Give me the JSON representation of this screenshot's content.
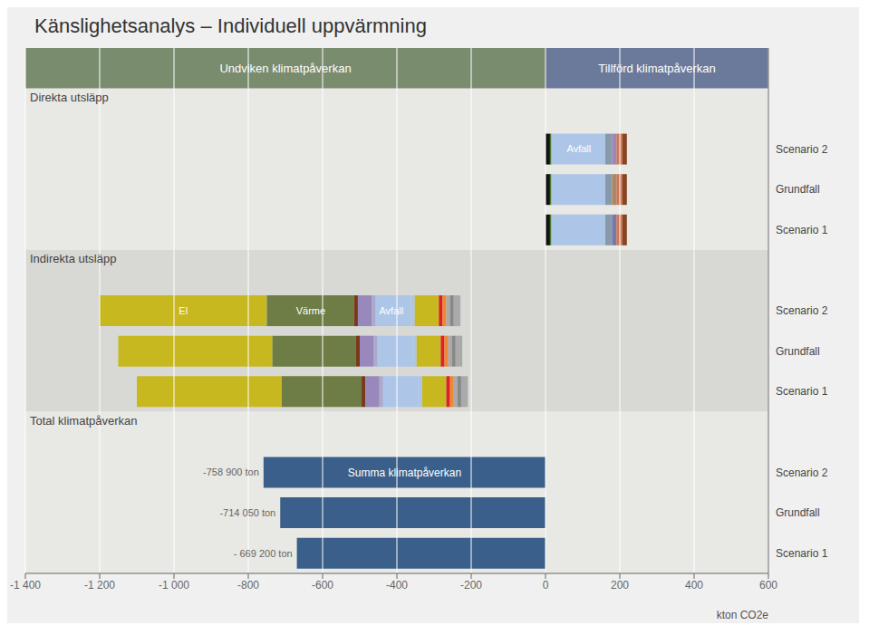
{
  "chart_data": {
    "type": "bar",
    "orientation": "horizontal",
    "stacked": true,
    "grid": true,
    "title": "Känslighetsanalys – Individuell uppvärmning",
    "xlabel": "kton CO2e",
    "xlim": [
      -1400,
      600
    ],
    "xticks": [
      {
        "value": -1400,
        "label": "-1 400"
      },
      {
        "value": -1200,
        "label": "-1 200"
      },
      {
        "value": -1000,
        "label": "-1 000"
      },
      -800,
      -600,
      -400,
      -200,
      0,
      200,
      400,
      600
    ],
    "background": "#f0f0f0",
    "headers": [
      {
        "text": "Undviken klimatpåverkan",
        "color": "#7a8c6e",
        "x": [
          -1400,
          0
        ]
      },
      {
        "text": "Tillförd klimatpåverkan",
        "color": "#6b7a9a",
        "x": [
          0,
          600
        ]
      }
    ],
    "groups": [
      {
        "name": "Direkta utsläpp",
        "color": "#e8e8e4",
        "rows": [
          {
            "category": "Scenario 2",
            "start": 0,
            "segments": [
              {
                "value": 12,
                "color": "#111111"
              },
              {
                "value": 4,
                "color": "#4a7a2c"
              },
              {
                "value": 145,
                "color": "#adc6e8"
              },
              {
                "value": 18,
                "color": "#8899aa"
              },
              {
                "value": 12,
                "color": "#9988bb"
              },
              {
                "value": 16,
                "color": "#cc7755"
              },
              {
                "value": 12,
                "color": "#884422"
              }
            ],
            "labels": [
              {
                "text": "Avfall",
                "x": 90,
                "color": "white"
              }
            ]
          },
          {
            "category": "Grundfall",
            "start": 0,
            "segments": [
              {
                "value": 12,
                "color": "#111111"
              },
              {
                "value": 4,
                "color": "#4a7a2c"
              },
              {
                "value": 145,
                "color": "#adc6e8"
              },
              {
                "value": 18,
                "color": "#8899aa"
              },
              {
                "value": 12,
                "color": "#aa8866"
              },
              {
                "value": 16,
                "color": "#cc7755"
              },
              {
                "value": 12,
                "color": "#884422"
              }
            ]
          },
          {
            "category": "Scenario 1",
            "start": 0,
            "segments": [
              {
                "value": 12,
                "color": "#111111"
              },
              {
                "value": 4,
                "color": "#4a7a2c"
              },
              {
                "value": 145,
                "color": "#adc6e8"
              },
              {
                "value": 18,
                "color": "#8899aa"
              },
              {
                "value": 12,
                "color": "#7777aa"
              },
              {
                "value": 16,
                "color": "#cc7755"
              },
              {
                "value": 12,
                "color": "#884422"
              }
            ]
          }
        ]
      },
      {
        "name": "Indirekta utsläpp",
        "color": "#d8d8d4",
        "rows": [
          {
            "category": "Scenario 2",
            "start": -1200,
            "segments": [
              {
                "value": 450,
                "color": "#c8b820"
              },
              {
                "value": 235,
                "color": "#6e7d45"
              },
              {
                "value": 10,
                "color": "#7a3a1a"
              },
              {
                "value": 38,
                "color": "#9988bb"
              },
              {
                "value": 10,
                "color": "#aaaacc"
              },
              {
                "value": 95,
                "color": "#adc6e8"
              },
              {
                "value": 10,
                "color": "#adc6e8"
              },
              {
                "value": 65,
                "color": "#c8b820"
              },
              {
                "value": 10,
                "color": "#dd2222"
              },
              {
                "value": 10,
                "color": "#ee8833"
              },
              {
                "value": 10,
                "color": "#aaaaaa"
              },
              {
                "value": 10,
                "color": "#888888"
              },
              {
                "value": 18,
                "color": "#aaaaaa"
              }
            ],
            "labels": [
              {
                "text": "El",
                "x": -975,
                "color": "white"
              },
              {
                "text": "Värme",
                "x": -632,
                "color": "white"
              },
              {
                "text": "Avfall",
                "x": -415,
                "color": "white"
              }
            ]
          },
          {
            "category": "Grundfall",
            "start": -1150,
            "segments": [
              {
                "value": 415,
                "color": "#c8b820"
              },
              {
                "value": 225,
                "color": "#6e7d45"
              },
              {
                "value": 10,
                "color": "#7a3a1a"
              },
              {
                "value": 38,
                "color": "#9988bb"
              },
              {
                "value": 10,
                "color": "#aaaacc"
              },
              {
                "value": 95,
                "color": "#adc6e8"
              },
              {
                "value": 10,
                "color": "#adc6e8"
              },
              {
                "value": 65,
                "color": "#c8b820"
              },
              {
                "value": 10,
                "color": "#dd2222"
              },
              {
                "value": 10,
                "color": "#ee8833"
              },
              {
                "value": 10,
                "color": "#aaaaaa"
              },
              {
                "value": 10,
                "color": "#888888"
              },
              {
                "value": 18,
                "color": "#aaaaaa"
              }
            ]
          },
          {
            "category": "Scenario 1",
            "start": -1100,
            "segments": [
              {
                "value": 390,
                "color": "#c8b820"
              },
              {
                "value": 215,
                "color": "#6e7d45"
              },
              {
                "value": 10,
                "color": "#7a3a1a"
              },
              {
                "value": 38,
                "color": "#9988bb"
              },
              {
                "value": 10,
                "color": "#aaaacc"
              },
              {
                "value": 95,
                "color": "#adc6e8"
              },
              {
                "value": 10,
                "color": "#adc6e8"
              },
              {
                "value": 65,
                "color": "#c8b820"
              },
              {
                "value": 10,
                "color": "#dd2222"
              },
              {
                "value": 10,
                "color": "#ee8833"
              },
              {
                "value": 10,
                "color": "#aaaaaa"
              },
              {
                "value": 10,
                "color": "#888888"
              },
              {
                "value": 18,
                "color": "#aaaaaa"
              }
            ]
          }
        ]
      },
      {
        "name": "Total klimatpåverkan",
        "color": "#e8e8e4",
        "rows": [
          {
            "category": "Scenario 2",
            "start": -758.9,
            "segments": [
              {
                "value": 758.9,
                "color": "#3a5f8a",
                "label": "Summa klimatpåverkan"
              }
            ],
            "annotation": "-758 900 ton"
          },
          {
            "category": "Grundfall",
            "start": -714.05,
            "segments": [
              {
                "value": 714.05,
                "color": "#3a5f8a"
              }
            ],
            "annotation": "-714 050 ton"
          },
          {
            "category": "Scenario 1",
            "start": -669.2,
            "segments": [
              {
                "value": 669.2,
                "color": "#3a5f8a"
              }
            ],
            "annotation": "- 669 200 ton"
          }
        ]
      }
    ]
  }
}
